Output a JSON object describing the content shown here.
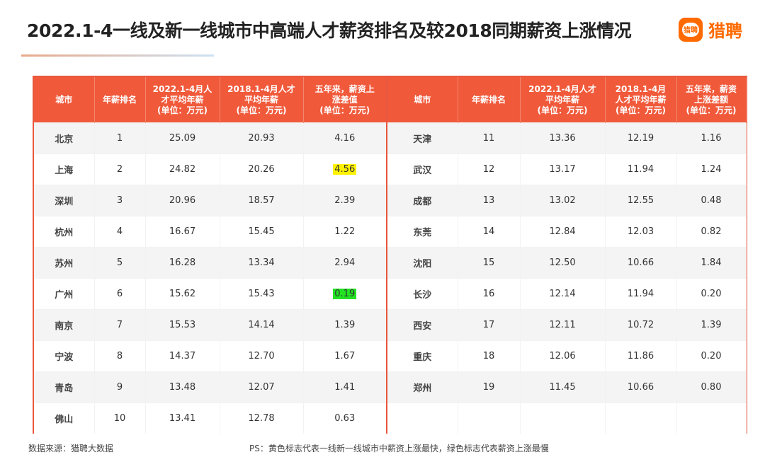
{
  "title": "2022.1-4一线及新一线城市中高端人才薪资排名及较2018同期薪资上涨情况",
  "logo": {
    "badge_text": "猎聘",
    "text": "猎聘",
    "color": "#ff6a00"
  },
  "colors": {
    "header_bg": "#f05a3b",
    "highlight_fastest": "#fff200",
    "highlight_slowest": "#22e322"
  },
  "chart_data": {
    "type": "table",
    "headers": [
      "城市",
      "年薪排名",
      "2022.1-4月人才平均年薪(单位：万元)",
      "2018.1-4月人才平均年薪(单位：万元)",
      "五年来，薪资上涨差值(单位：万元)",
      "城市",
      "年薪排名",
      "2022.1-4月人才平均年薪(单位：万元)",
      "2018.1-4月人才平均年薪(单位：万元)",
      "五年来，薪资上涨差额(单位：万元)"
    ],
    "header_cells": [
      [
        "城市"
      ],
      [
        "年薪排名"
      ],
      [
        "2022.1-4月人",
        "才平均年薪",
        "(单位：万元)"
      ],
      [
        "2018.1-4月人才",
        "平均年薪",
        "(单位：万元)"
      ],
      [
        "五年来，薪资上",
        "涨差值",
        "(单位：万元)"
      ],
      [
        "城市"
      ],
      [
        "年薪排名"
      ],
      [
        "2022.1-4月人才",
        "平均年薪",
        "(单位：万元)"
      ],
      [
        "2018.1-4月",
        "人才平均年薪",
        "(单位：万元)"
      ],
      [
        "五年来，薪资",
        "上涨差额",
        "(单位：万元)"
      ]
    ],
    "rows": [
      [
        "北京",
        "1",
        "25.09",
        "20.93",
        "4.16",
        "天津",
        "11",
        "13.36",
        "12.19",
        "1.16"
      ],
      [
        "上海",
        "2",
        "24.82",
        "20.26",
        "4.56",
        "武汉",
        "12",
        "13.17",
        "11.94",
        "1.24"
      ],
      [
        "深圳",
        "3",
        "20.96",
        "18.57",
        "2.39",
        "成都",
        "13",
        "13.02",
        "12.55",
        "0.48"
      ],
      [
        "杭州",
        "4",
        "16.67",
        "15.45",
        "1.22",
        "东莞",
        "14",
        "12.84",
        "12.03",
        "0.82"
      ],
      [
        "苏州",
        "5",
        "16.28",
        "13.34",
        "2.94",
        "沈阳",
        "15",
        "12.50",
        "10.66",
        "1.84"
      ],
      [
        "广州",
        "6",
        "15.62",
        "15.43",
        "0.19",
        "长沙",
        "16",
        "12.14",
        "11.94",
        "0.20"
      ],
      [
        "南京",
        "7",
        "15.53",
        "14.14",
        "1.39",
        "西安",
        "17",
        "12.11",
        "10.72",
        "1.39"
      ],
      [
        "宁波",
        "8",
        "14.37",
        "12.70",
        "1.67",
        "重庆",
        "18",
        "12.06",
        "11.86",
        "0.20"
      ],
      [
        "青岛",
        "9",
        "13.48",
        "12.07",
        "1.41",
        "郑州",
        "19",
        "11.45",
        "10.66",
        "0.80"
      ],
      [
        "佛山",
        "10",
        "13.41",
        "12.78",
        "0.63",
        "",
        "",
        "",
        "",
        ""
      ]
    ],
    "highlights": [
      {
        "row": 1,
        "col": 4,
        "color": "yellow"
      },
      {
        "row": 5,
        "col": 4,
        "color": "green"
      }
    ]
  },
  "footer": {
    "source": "数据来源：猎聘大数据",
    "note": "PS：黄色标志代表一线新一线城市中薪资上涨最快，绿色标志代表薪资上涨最慢"
  }
}
